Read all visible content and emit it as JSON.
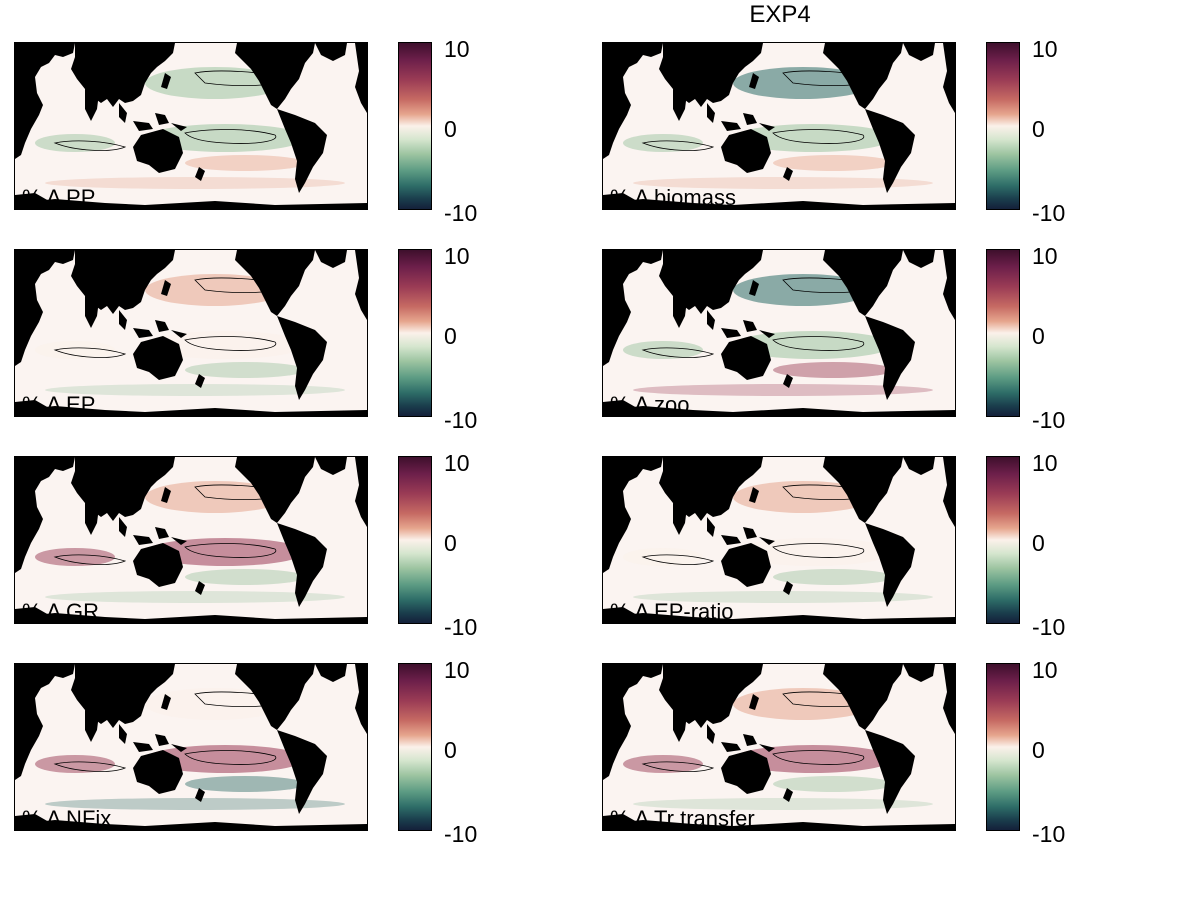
{
  "figure_title": "EXP4",
  "colorbar": {
    "max_label": "10",
    "mid_label": "0",
    "min_label": "-10",
    "colormap": [
      "#14203a",
      "#2e6d68",
      "#9dc4a1",
      "#fbf1ea",
      "#e6a68e",
      "#9a3b55",
      "#3e0f2c"
    ]
  },
  "colors": {
    "land": "#000000",
    "ocean_background": "#fbf4f1"
  },
  "panels": [
    {
      "label": "% Δ PP"
    },
    {
      "label": "% Δ biomass"
    },
    {
      "label": "% Δ EP"
    },
    {
      "label": "% Δ zoo"
    },
    {
      "label": "% Δ GR"
    },
    {
      "label": "% Δ EP-ratio"
    },
    {
      "label": "% Δ NFix"
    },
    {
      "label": "% Δ Tr transfer"
    }
  ],
  "chart_data": {
    "type": "heatmap",
    "title": "EXP4",
    "colorbar_range": [
      -10,
      10
    ],
    "colorbar_ticks": [
      10,
      0,
      -10
    ],
    "panels": [
      {
        "variable": "% Δ PP",
        "dominant_sign": "negative",
        "typical_range": [
          -5,
          3
        ]
      },
      {
        "variable": "% Δ biomass",
        "dominant_sign": "negative",
        "typical_range": [
          -10,
          3
        ]
      },
      {
        "variable": "% Δ EP",
        "dominant_sign": "positive",
        "typical_range": [
          -3,
          5
        ]
      },
      {
        "variable": "% Δ zoo",
        "dominant_sign": "negative",
        "typical_range": [
          -8,
          5
        ]
      },
      {
        "variable": "% Δ GR",
        "dominant_sign": "positive",
        "typical_range": [
          -3,
          8
        ]
      },
      {
        "variable": "% Δ EP-ratio",
        "dominant_sign": "positive",
        "typical_range": [
          -2,
          5
        ]
      },
      {
        "variable": "% Δ NFix",
        "dominant_sign": "mixed",
        "typical_range": [
          -10,
          10
        ]
      },
      {
        "variable": "% Δ Tr transfer",
        "dominant_sign": "positive",
        "typical_range": [
          -3,
          10
        ]
      }
    ]
  }
}
